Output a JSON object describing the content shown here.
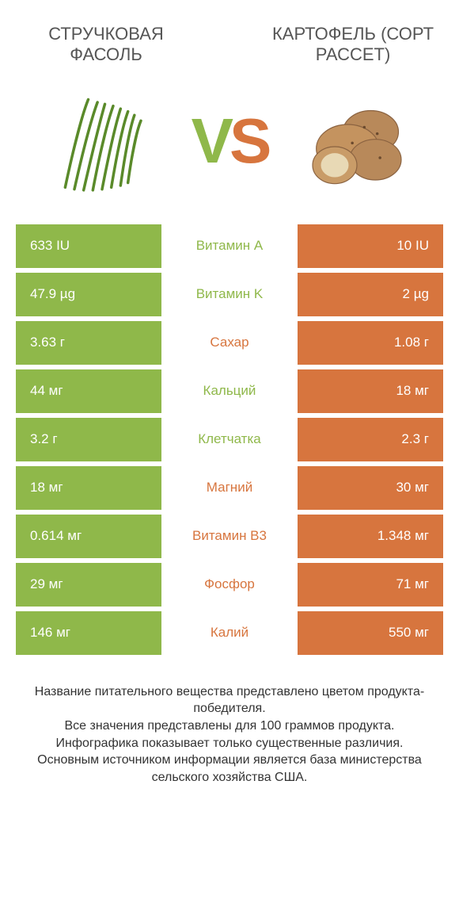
{
  "colors": {
    "left": "#8fb84a",
    "right": "#d7753e",
    "white": "#ffffff",
    "text": "#555555"
  },
  "left_title": "СТРУЧКОВАЯ ФАСОЛЬ",
  "right_title": "КАРТОФЕЛЬ (СОРТ РАССЕТ)",
  "vs_v": "V",
  "vs_s": "S",
  "rows": [
    {
      "left": "633 IU",
      "label": "Витамин A",
      "right": "10 IU",
      "winner": "left"
    },
    {
      "left": "47.9 µg",
      "label": "Витамин K",
      "right": "2 µg",
      "winner": "left"
    },
    {
      "left": "3.63 г",
      "label": "Сахар",
      "right": "1.08 г",
      "winner": "right"
    },
    {
      "left": "44 мг",
      "label": "Кальций",
      "right": "18 мг",
      "winner": "left"
    },
    {
      "left": "3.2 г",
      "label": "Клетчатка",
      "right": "2.3 г",
      "winner": "left"
    },
    {
      "left": "18 мг",
      "label": "Магний",
      "right": "30 мг",
      "winner": "right"
    },
    {
      "left": "0.614 мг",
      "label": "Витамин B3",
      "right": "1.348 мг",
      "winner": "right"
    },
    {
      "left": "29 мг",
      "label": "Фосфор",
      "right": "71 мг",
      "winner": "right"
    },
    {
      "left": "146 мг",
      "label": "Калий",
      "right": "550 мг",
      "winner": "right"
    }
  ],
  "footer": "Название питательного вещества представлено цветом продукта-победителя.\nВсе значения представлены для 100 граммов продукта.\nИнфографика показывает только существенные различия.\nОсновным источником информации является база министерства сельского хозяйства США."
}
